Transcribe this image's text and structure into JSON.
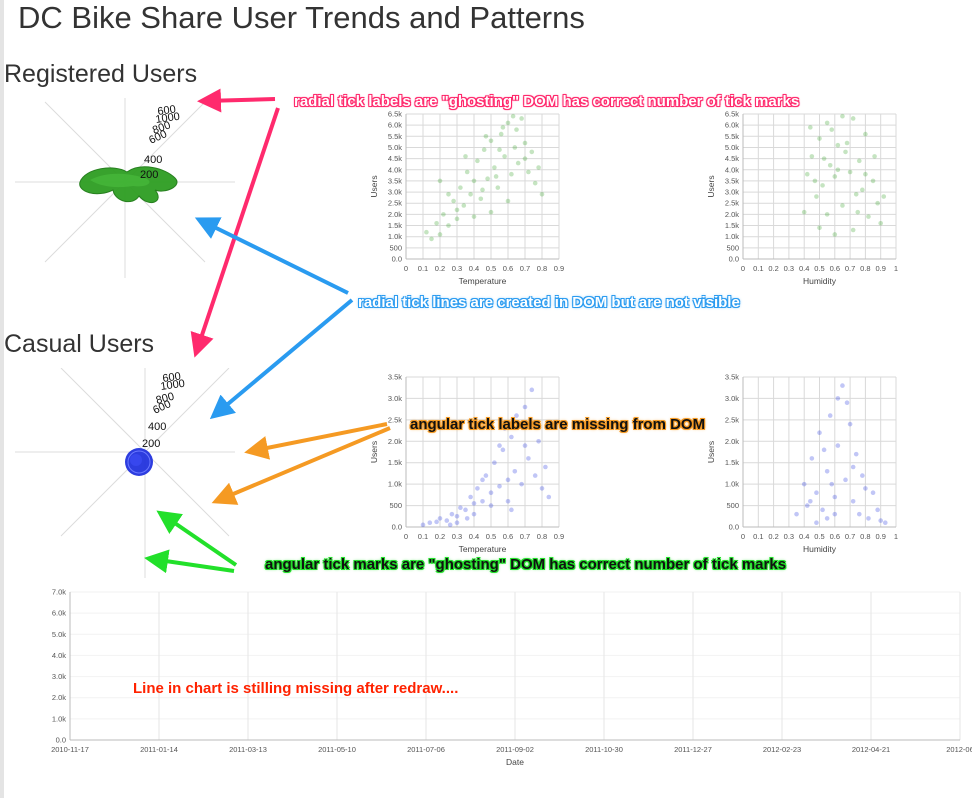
{
  "page": {
    "title": "DC Bike Share User Trends and Patterns",
    "sections": {
      "registered": "Registered Users",
      "casual": "Casual Users"
    }
  },
  "colors": {
    "registered": "#2e9e22",
    "casual": "#2233dd",
    "annotation_pink": "#ff2a6d",
    "annotation_blue": "#2a9bf0",
    "annotation_orange": "#f59a23",
    "annotation_green": "#22e02a",
    "annotation_red": "#ff2200"
  },
  "annotations": {
    "radial_labels": "radial tick labels are \"ghosting\" DOM has correct number of tick marks",
    "radial_lines": "radial tick lines are created in DOM but are not visible",
    "angular_labels": "angular tick labels are missing from DOM",
    "angular_marks": "angular tick marks are \"ghosting\" DOM has correct number of tick marks",
    "line_missing": "Line in chart is stilling missing after redraw...."
  },
  "radial": {
    "registered_ticks": [
      "600",
      "1000",
      "800",
      "600",
      "400",
      "200"
    ],
    "casual_ticks": [
      "600",
      "1000",
      "800",
      "600",
      "400",
      "200"
    ]
  },
  "chart_data": [
    {
      "type": "scatter",
      "id": "registered-temperature",
      "xlabel": "Temperature",
      "ylabel": "Users",
      "xlim": [
        0,
        0.9
      ],
      "ylim": [
        0,
        6.5
      ],
      "x_ticks": [
        "0",
        "0.1",
        "0.2",
        "0.3",
        "0.4",
        "0.5",
        "0.6",
        "0.7",
        "0.8",
        "0.9"
      ],
      "y_ticks": [
        "0.0",
        "500",
        "1.0k",
        "1.5k",
        "2.0k",
        "2.5k",
        "3.0k",
        "3.5k",
        "4.0k",
        "4.5k",
        "5.0k",
        "5.5k",
        "6.0k",
        "6.5k"
      ],
      "series": [
        {
          "points": [
            [
              0.12,
              1.2
            ],
            [
              0.15,
              0.9
            ],
            [
              0.18,
              1.6
            ],
            [
              0.2,
              1.1
            ],
            [
              0.22,
              2.0
            ],
            [
              0.25,
              1.5
            ],
            [
              0.28,
              2.6
            ],
            [
              0.3,
              1.8
            ],
            [
              0.32,
              3.2
            ],
            [
              0.34,
              2.4
            ],
            [
              0.36,
              3.9
            ],
            [
              0.38,
              2.9
            ],
            [
              0.4,
              3.5
            ],
            [
              0.42,
              4.4
            ],
            [
              0.44,
              2.7
            ],
            [
              0.46,
              4.9
            ],
            [
              0.48,
              3.6
            ],
            [
              0.5,
              5.3
            ],
            [
              0.52,
              4.1
            ],
            [
              0.54,
              3.2
            ],
            [
              0.56,
              5.6
            ],
            [
              0.58,
              4.6
            ],
            [
              0.6,
              6.1
            ],
            [
              0.62,
              3.8
            ],
            [
              0.64,
              5.0
            ],
            [
              0.66,
              4.3
            ],
            [
              0.68,
              6.3
            ],
            [
              0.7,
              5.2
            ],
            [
              0.72,
              3.9
            ],
            [
              0.74,
              4.8
            ],
            [
              0.76,
              3.4
            ],
            [
              0.78,
              4.1
            ],
            [
              0.8,
              2.9
            ],
            [
              0.3,
              2.2
            ],
            [
              0.45,
              3.1
            ],
            [
              0.55,
              4.9
            ],
            [
              0.65,
              5.8
            ],
            [
              0.6,
              2.6
            ],
            [
              0.5,
              2.1
            ],
            [
              0.4,
              1.9
            ],
            [
              0.35,
              4.6
            ],
            [
              0.25,
              2.9
            ],
            [
              0.2,
              3.5
            ],
            [
              0.7,
              4.5
            ],
            [
              0.57,
              5.9
            ],
            [
              0.63,
              6.4
            ],
            [
              0.47,
              5.5
            ],
            [
              0.53,
              3.7
            ]
          ]
        }
      ]
    },
    {
      "type": "scatter",
      "id": "registered-humidity",
      "xlabel": "Humidity",
      "ylabel": "Users",
      "xlim": [
        0,
        1
      ],
      "ylim": [
        0,
        6.5
      ],
      "x_ticks": [
        "0",
        "0.1",
        "0.2",
        "0.3",
        "0.4",
        "0.5",
        "0.6",
        "0.7",
        "0.8",
        "0.9",
        "1"
      ],
      "y_ticks": [
        "0.0",
        "500",
        "1.0k",
        "1.5k",
        "2.0k",
        "2.5k",
        "3.0k",
        "3.5k",
        "4.0k",
        "4.5k",
        "5.0k",
        "5.5k",
        "6.0k",
        "6.5k"
      ],
      "series": [
        {
          "points": [
            [
              0.4,
              2.1
            ],
            [
              0.42,
              3.8
            ],
            [
              0.45,
              4.6
            ],
            [
              0.48,
              2.8
            ],
            [
              0.5,
              5.4
            ],
            [
              0.52,
              3.3
            ],
            [
              0.55,
              6.1
            ],
            [
              0.57,
              4.2
            ],
            [
              0.6,
              3.7
            ],
            [
              0.62,
              5.1
            ],
            [
              0.65,
              2.4
            ],
            [
              0.67,
              4.8
            ],
            [
              0.7,
              3.9
            ],
            [
              0.72,
              6.3
            ],
            [
              0.74,
              2.9
            ],
            [
              0.76,
              4.4
            ],
            [
              0.78,
              3.1
            ],
            [
              0.8,
              5.6
            ],
            [
              0.82,
              1.9
            ],
            [
              0.85,
              3.5
            ],
            [
              0.88,
              2.5
            ],
            [
              0.9,
              1.6
            ],
            [
              0.5,
              1.4
            ],
            [
              0.55,
              2.0
            ],
            [
              0.6,
              1.1
            ],
            [
              0.65,
              6.4
            ],
            [
              0.58,
              5.8
            ],
            [
              0.68,
              5.2
            ],
            [
              0.62,
              4.0
            ],
            [
              0.53,
              4.5
            ],
            [
              0.47,
              3.5
            ],
            [
              0.72,
              1.3
            ],
            [
              0.75,
              2.1
            ],
            [
              0.44,
              5.9
            ],
            [
              0.8,
              3.8
            ],
            [
              0.86,
              4.6
            ],
            [
              0.92,
              2.8
            ]
          ]
        }
      ]
    },
    {
      "type": "scatter",
      "id": "casual-temperature",
      "xlabel": "Temperature",
      "ylabel": "Users",
      "xlim": [
        0,
        0.9
      ],
      "ylim": [
        0,
        3.5
      ],
      "x_ticks": [
        "0",
        "0.1",
        "0.2",
        "0.3",
        "0.4",
        "0.5",
        "0.6",
        "0.7",
        "0.8",
        "0.9"
      ],
      "y_ticks": [
        "0.0",
        "500",
        "1.0k",
        "1.5k",
        "2.0k",
        "2.5k",
        "3.0k",
        "3.5k"
      ],
      "series": [
        {
          "points": [
            [
              0.1,
              0.05
            ],
            [
              0.14,
              0.1
            ],
            [
              0.18,
              0.12
            ],
            [
              0.2,
              0.2
            ],
            [
              0.24,
              0.15
            ],
            [
              0.27,
              0.3
            ],
            [
              0.3,
              0.25
            ],
            [
              0.32,
              0.45
            ],
            [
              0.35,
              0.4
            ],
            [
              0.38,
              0.7
            ],
            [
              0.4,
              0.55
            ],
            [
              0.42,
              0.9
            ],
            [
              0.45,
              0.6
            ],
            [
              0.47,
              1.2
            ],
            [
              0.5,
              0.8
            ],
            [
              0.52,
              1.5
            ],
            [
              0.55,
              0.95
            ],
            [
              0.57,
              1.8
            ],
            [
              0.6,
              1.1
            ],
            [
              0.62,
              2.1
            ],
            [
              0.64,
              1.3
            ],
            [
              0.66,
              2.4
            ],
            [
              0.68,
              1.0
            ],
            [
              0.7,
              2.8
            ],
            [
              0.72,
              1.6
            ],
            [
              0.74,
              3.2
            ],
            [
              0.76,
              1.2
            ],
            [
              0.78,
              2.0
            ],
            [
              0.8,
              0.9
            ],
            [
              0.82,
              1.4
            ],
            [
              0.84,
              0.7
            ],
            [
              0.3,
              0.1
            ],
            [
              0.4,
              0.3
            ],
            [
              0.5,
              0.5
            ],
            [
              0.6,
              0.6
            ],
            [
              0.45,
              1.1
            ],
            [
              0.55,
              1.9
            ],
            [
              0.65,
              2.6
            ],
            [
              0.7,
              1.9
            ],
            [
              0.58,
              2.3
            ],
            [
              0.36,
              0.2
            ],
            [
              0.26,
              0.05
            ],
            [
              0.62,
              0.4
            ]
          ]
        }
      ]
    },
    {
      "type": "scatter",
      "id": "casual-humidity",
      "xlabel": "Humidity",
      "ylabel": "Users",
      "xlim": [
        0,
        1
      ],
      "ylim": [
        0,
        3.5
      ],
      "x_ticks": [
        "0",
        "0.1",
        "0.2",
        "0.3",
        "0.4",
        "0.5",
        "0.6",
        "0.7",
        "0.8",
        "0.9",
        "1"
      ],
      "y_ticks": [
        "0.0",
        "500",
        "1.0k",
        "1.5k",
        "2.0k",
        "2.5k",
        "3.0k",
        "3.5k"
      ],
      "series": [
        {
          "points": [
            [
              0.35,
              0.3
            ],
            [
              0.4,
              1.0
            ],
            [
              0.42,
              0.5
            ],
            [
              0.45,
              1.6
            ],
            [
              0.48,
              0.8
            ],
            [
              0.5,
              2.2
            ],
            [
              0.52,
              0.4
            ],
            [
              0.55,
              1.3
            ],
            [
              0.57,
              2.6
            ],
            [
              0.6,
              0.7
            ],
            [
              0.62,
              1.9
            ],
            [
              0.65,
              3.3
            ],
            [
              0.67,
              1.1
            ],
            [
              0.7,
              2.4
            ],
            [
              0.72,
              0.6
            ],
            [
              0.74,
              1.7
            ],
            [
              0.76,
              0.3
            ],
            [
              0.78,
              1.2
            ],
            [
              0.8,
              0.9
            ],
            [
              0.82,
              0.2
            ],
            [
              0.85,
              0.8
            ],
            [
              0.88,
              0.4
            ],
            [
              0.9,
              0.15
            ],
            [
              0.93,
              0.1
            ],
            [
              0.55,
              0.2
            ],
            [
              0.6,
              0.3
            ],
            [
              0.48,
              0.1
            ],
            [
              0.68,
              2.9
            ],
            [
              0.62,
              3.0
            ],
            [
              0.44,
              0.6
            ],
            [
              0.53,
              1.8
            ],
            [
              0.58,
              1.0
            ],
            [
              0.72,
              1.4
            ]
          ]
        }
      ]
    },
    {
      "type": "line",
      "id": "date-chart",
      "xlabel": "Date",
      "ylabel": "",
      "ylim": [
        0,
        7
      ],
      "x_ticks": [
        "2010-11-17",
        "2011-01-14",
        "2011-03-13",
        "2011-05-10",
        "2011-07-06",
        "2011-09-02",
        "2011-10-30",
        "2011-12-27",
        "2012-02-23",
        "2012-04-21",
        "2012-06"
      ],
      "y_ticks": [
        "0.0",
        "1.0k",
        "2.0k",
        "3.0k",
        "4.0k",
        "5.0k",
        "6.0k",
        "7.0k"
      ],
      "series": []
    }
  ]
}
